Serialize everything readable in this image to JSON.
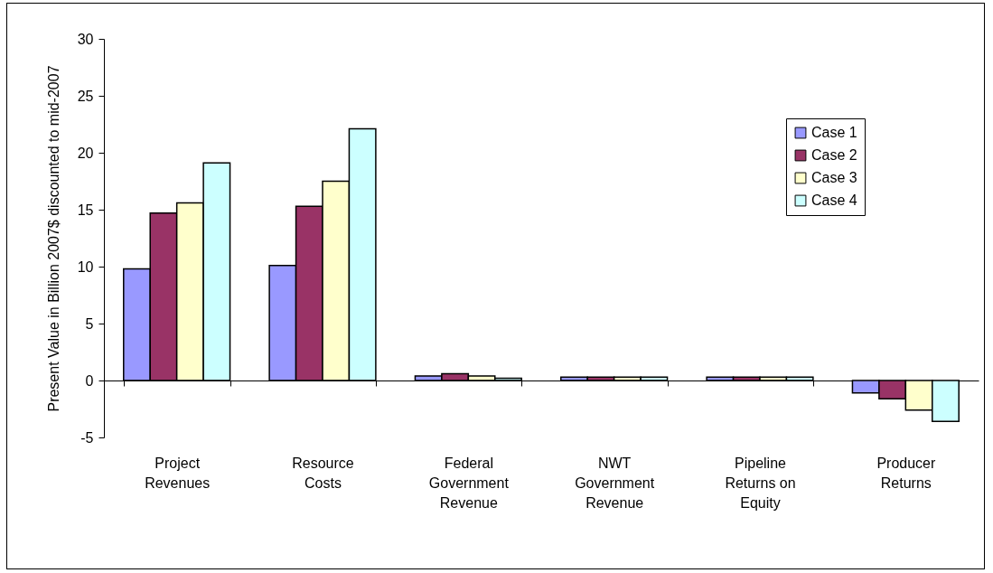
{
  "chart_data": {
    "type": "bar",
    "ylabel": "Present Value in Billion 2007$ discounted to mid-2007",
    "categories": [
      "Project Revenues",
      "Resource Costs",
      "Federal Government Revenue",
      "NWT Government Revenue",
      "Pipeline Returns on Equity",
      "Producer Returns"
    ],
    "series": [
      {
        "name": "Case 1",
        "color": "#9999ff",
        "values": [
          9.8,
          10.1,
          0.4,
          0.3,
          0.3,
          -1.1
        ]
      },
      {
        "name": "Case 2",
        "color": "#993366",
        "values": [
          14.7,
          15.3,
          0.6,
          0.3,
          0.3,
          -1.6
        ]
      },
      {
        "name": "Case 3",
        "color": "#ffffcc",
        "values": [
          15.6,
          17.5,
          0.4,
          0.3,
          0.3,
          -2.6
        ]
      },
      {
        "name": "Case 4",
        "color": "#ccffff",
        "values": [
          19.1,
          22.1,
          0.2,
          0.3,
          0.3,
          -3.6
        ]
      }
    ],
    "ylim": [
      -5,
      30
    ],
    "yticks": [
      -5,
      0,
      5,
      10,
      15,
      20,
      25,
      30
    ],
    "legend": "right"
  }
}
